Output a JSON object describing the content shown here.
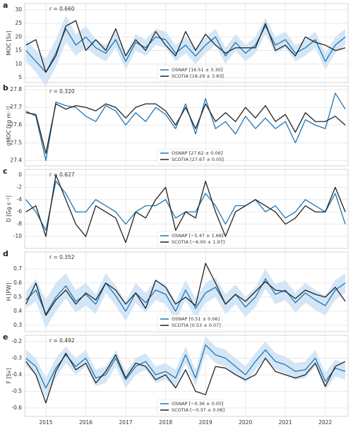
{
  "chart_data": [
    {
      "type": "line",
      "panel_label": "a",
      "ylabel": "MOC [Sv]",
      "annotation": "r = 0.660",
      "legend": "lower center",
      "x": [
        2014.5,
        2014.75,
        2015,
        2015.25,
        2015.5,
        2015.75,
        2016,
        2016.25,
        2016.5,
        2016.75,
        2017,
        2017.25,
        2017.5,
        2017.75,
        2018,
        2018.25,
        2018.5,
        2018.75,
        2019,
        2019.25,
        2019.5,
        2019.75,
        2020,
        2020.25,
        2020.5,
        2020.75,
        2021,
        2021.25,
        2021.5,
        2021.75,
        2022,
        2022.25,
        2022.5
      ],
      "xlim": [
        2014.47,
        2022.57
      ],
      "xticks": [
        2015,
        2016,
        2017,
        2018,
        2019,
        2020,
        2021,
        2022
      ],
      "ylim": [
        3.2,
        32.3
      ],
      "yticks": [
        5,
        10,
        15,
        20,
        25,
        30
      ],
      "grid": true,
      "series": [
        {
          "name": "OSNAP [16.51 ± 3.30]",
          "color": "#1f77b4",
          "band_color": "#d4e6f5",
          "values": [
            15,
            11,
            7,
            14,
            23,
            17,
            20,
            16,
            14,
            19,
            11,
            18,
            16,
            20,
            19,
            14,
            17,
            13,
            17,
            20,
            13,
            18,
            14,
            17,
            24,
            17,
            19,
            14,
            16,
            19,
            11,
            17,
            20
          ],
          "errors": [
            4,
            4,
            5,
            5,
            5,
            4,
            4,
            3,
            3,
            3,
            3,
            3,
            3,
            3,
            3,
            3,
            3,
            3,
            3,
            3,
            3,
            3,
            3,
            3,
            3,
            3,
            3,
            3,
            3,
            3,
            3,
            3,
            3
          ]
        },
        {
          "name": "SCOTIA [18.29 ± 3.83]",
          "color": "#222222",
          "values": [
            17,
            19,
            7,
            13,
            24,
            26,
            15,
            19,
            15,
            23,
            13,
            19,
            15,
            22,
            17,
            13,
            22,
            15,
            21,
            17,
            14,
            16,
            16,
            16,
            25,
            15,
            17,
            13,
            20,
            18,
            17,
            15,
            16
          ]
        }
      ]
    },
    {
      "type": "line",
      "panel_label": "b",
      "ylabel": "σMOC [kg m⁻³]",
      "annotation": "r = 0.320",
      "legend": "lower center",
      "x": [
        2014.5,
        2014.75,
        2015,
        2015.25,
        2015.5,
        2015.75,
        2016,
        2016.25,
        2016.5,
        2016.75,
        2017,
        2017.25,
        2017.5,
        2017.75,
        2018,
        2018.25,
        2018.5,
        2018.75,
        2019,
        2019.25,
        2019.5,
        2019.75,
        2020,
        2020.25,
        2020.5,
        2020.75,
        2021,
        2021.25,
        2021.5,
        2021.75,
        2022,
        2022.25,
        2022.5
      ],
      "xlim": [
        2014.47,
        2022.57
      ],
      "xticks": [
        2015,
        2016,
        2017,
        2018,
        2019,
        2020,
        2021,
        2022
      ],
      "ylim": [
        27.37,
        27.82
      ],
      "yticks": [
        27.4,
        27.5,
        27.6,
        27.7,
        27.8
      ],
      "grid": true,
      "series": [
        {
          "name": "OSNAP [27.62 ± 0.06]",
          "color": "#1f77b4",
          "values": [
            27.68,
            27.65,
            27.4,
            27.73,
            27.71,
            27.7,
            27.65,
            27.62,
            27.71,
            27.68,
            27.6,
            27.67,
            27.62,
            27.7,
            27.66,
            27.58,
            27.72,
            27.55,
            27.75,
            27.58,
            27.62,
            27.55,
            27.65,
            27.58,
            27.64,
            27.58,
            27.62,
            27.5,
            27.63,
            27.6,
            27.58,
            27.78,
            27.69
          ]
        },
        {
          "name": "SCOTIA [27.67 ± 0.05]",
          "color": "#222222",
          "values": [
            27.67,
            27.66,
            27.44,
            27.72,
            27.69,
            27.71,
            27.7,
            27.68,
            27.72,
            27.7,
            27.64,
            27.7,
            27.72,
            27.72,
            27.68,
            27.6,
            27.7,
            27.58,
            27.72,
            27.62,
            27.67,
            27.62,
            27.7,
            27.64,
            27.71,
            27.62,
            27.66,
            27.56,
            27.67,
            27.62,
            27.62,
            27.65,
            27.6
          ]
        }
      ]
    },
    {
      "type": "line",
      "panel_label": "c",
      "ylabel": "D [Gg s⁻¹]",
      "annotation": "r = 0.627",
      "legend": "lower center",
      "x": [
        2014.5,
        2014.75,
        2015,
        2015.25,
        2015.5,
        2015.75,
        2016,
        2016.25,
        2016.5,
        2016.75,
        2017,
        2017.25,
        2017.5,
        2017.75,
        2018,
        2018.25,
        2018.5,
        2018.75,
        2019,
        2019.25,
        2019.5,
        2019.75,
        2020,
        2020.25,
        2020.5,
        2020.75,
        2021,
        2021.25,
        2021.5,
        2021.75,
        2022,
        2022.25,
        2022.5
      ],
      "xlim": [
        2014.47,
        2022.57
      ],
      "xticks": [
        2015,
        2016,
        2017,
        2018,
        2019,
        2020,
        2021,
        2022
      ],
      "ylim": [
        -11.95,
        0.92
      ],
      "yticks": [
        -10,
        -8,
        -6,
        -4,
        -2,
        0
      ],
      "grid": true,
      "series": [
        {
          "name": "OSNAP [−5.47 ± 1.68]",
          "color": "#1f77b4",
          "values": [
            -4,
            -6,
            -9,
            -1,
            -3,
            -6,
            -6,
            -4,
            -5,
            -6,
            -8,
            -6,
            -5,
            -5,
            -4,
            -7,
            -6,
            -6,
            -3,
            -5,
            -8,
            -5,
            -5,
            -4,
            -6,
            -5,
            -7,
            -6,
            -4,
            -5,
            -6,
            -3,
            -8
          ]
        },
        {
          "name": "SCOTIA [−6.00 ± 1.97]",
          "color": "#222222",
          "values": [
            -6,
            -5,
            -10,
            0,
            -4,
            -8,
            -10,
            -5,
            -6,
            -7,
            -11,
            -6,
            -7,
            -4,
            -2,
            -9,
            -6,
            -7,
            -1,
            -6,
            -10,
            -6,
            -5,
            -4,
            -5,
            -6,
            -8,
            -7,
            -5,
            -6,
            -6,
            -2,
            -6
          ]
        }
      ]
    },
    {
      "type": "line",
      "panel_label": "d",
      "ylabel": "H [PW]",
      "annotation": "r = 0.352",
      "legend": "lower center",
      "x": [
        2014.5,
        2014.75,
        2015,
        2015.25,
        2015.5,
        2015.75,
        2016,
        2016.25,
        2016.5,
        2016.75,
        2017,
        2017.25,
        2017.5,
        2017.75,
        2018,
        2018.25,
        2018.5,
        2018.75,
        2019,
        2019.25,
        2019.5,
        2019.75,
        2020,
        2020.25,
        2020.5,
        2020.75,
        2021,
        2021.25,
        2021.5,
        2021.75,
        2022,
        2022.25,
        2022.5
      ],
      "xlim": [
        2014.47,
        2022.57
      ],
      "xticks": [
        2015,
        2016,
        2017,
        2018,
        2019,
        2020,
        2021,
        2022
      ],
      "ylim": [
        0.255,
        0.82
      ],
      "yticks": [
        0.3,
        0.4,
        0.5,
        0.6,
        0.7
      ],
      "grid": true,
      "series": [
        {
          "name": "OSNAP [0.51 ± 0.06]",
          "color": "#1f77b4",
          "band_color": "#d4e6f5",
          "values": [
            0.48,
            0.55,
            0.38,
            0.5,
            0.58,
            0.47,
            0.52,
            0.45,
            0.6,
            0.51,
            0.4,
            0.53,
            0.46,
            0.55,
            0.52,
            0.4,
            0.55,
            0.42,
            0.53,
            0.57,
            0.45,
            0.52,
            0.43,
            0.5,
            0.63,
            0.52,
            0.55,
            0.46,
            0.53,
            0.48,
            0.44,
            0.55,
            0.6
          ],
          "errors": [
            0.06,
            0.08,
            0.1,
            0.1,
            0.09,
            0.08,
            0.08,
            0.07,
            0.07,
            0.07,
            0.07,
            0.07,
            0.07,
            0.07,
            0.07,
            0.07,
            0.07,
            0.07,
            0.07,
            0.07,
            0.07,
            0.07,
            0.07,
            0.07,
            0.07,
            0.07,
            0.07,
            0.07,
            0.07,
            0.07,
            0.07,
            0.07,
            0.07
          ]
        },
        {
          "name": "SCOTIA [0.53 ± 0.07]",
          "color": "#222222",
          "values": [
            0.45,
            0.6,
            0.37,
            0.48,
            0.55,
            0.45,
            0.53,
            0.48,
            0.6,
            0.55,
            0.45,
            0.53,
            0.42,
            0.62,
            0.57,
            0.45,
            0.5,
            0.44,
            0.74,
            0.6,
            0.45,
            0.52,
            0.47,
            0.54,
            0.61,
            0.55,
            0.54,
            0.49,
            0.55,
            0.52,
            0.5,
            0.57,
            0.47
          ]
        }
      ]
    },
    {
      "type": "line",
      "panel_label": "e",
      "ylabel": "F [Sv]",
      "annotation": "r = 0.492",
      "legend": "lower center",
      "x": [
        2014.5,
        2014.75,
        2015,
        2015.25,
        2015.5,
        2015.75,
        2016,
        2016.25,
        2016.5,
        2016.75,
        2017,
        2017.25,
        2017.5,
        2017.75,
        2018,
        2018.25,
        2018.5,
        2018.75,
        2019,
        2019.25,
        2019.5,
        2019.75,
        2020,
        2020.25,
        2020.5,
        2020.75,
        2021,
        2021.25,
        2021.5,
        2021.75,
        2022,
        2022.25,
        2022.5
      ],
      "xlim": [
        2014.47,
        2022.57
      ],
      "xticks": [
        2015,
        2016,
        2017,
        2018,
        2019,
        2020,
        2021,
        2022
      ],
      "xtick_labels": true,
      "ylim": [
        -0.651,
        -0.162
      ],
      "yticks": [
        -0.6,
        -0.5,
        -0.4,
        -0.3,
        -0.2
      ],
      "grid": true,
      "series": [
        {
          "name": "OSNAP [−0.36 ± 0.05]",
          "color": "#1f77b4",
          "band_color": "#d4e6f5",
          "values": [
            -0.3,
            -0.35,
            -0.48,
            -0.36,
            -0.28,
            -0.35,
            -0.3,
            -0.42,
            -0.4,
            -0.3,
            -0.43,
            -0.35,
            -0.32,
            -0.4,
            -0.38,
            -0.42,
            -0.28,
            -0.42,
            -0.22,
            -0.28,
            -0.3,
            -0.35,
            -0.4,
            -0.32,
            -0.25,
            -0.32,
            -0.34,
            -0.38,
            -0.37,
            -0.3,
            -0.44,
            -0.36,
            -0.38
          ],
          "errors": [
            0.05,
            0.05,
            0.06,
            0.06,
            0.05,
            0.05,
            0.05,
            0.05,
            0.05,
            0.05,
            0.05,
            0.05,
            0.05,
            0.05,
            0.05,
            0.05,
            0.05,
            0.05,
            0.05,
            0.05,
            0.05,
            0.05,
            0.05,
            0.05,
            0.05,
            0.05,
            0.05,
            0.05,
            0.05,
            0.05,
            0.05,
            0.05,
            0.05
          ]
        },
        {
          "name": "SCOTIA [−0.37 ± 0.06]",
          "color": "#222222",
          "values": [
            -0.32,
            -0.4,
            -0.57,
            -0.38,
            -0.27,
            -0.37,
            -0.33,
            -0.45,
            -0.38,
            -0.28,
            -0.42,
            -0.33,
            -0.35,
            -0.43,
            -0.4,
            -0.48,
            -0.37,
            -0.5,
            -0.52,
            -0.35,
            -0.36,
            -0.4,
            -0.43,
            -0.4,
            -0.3,
            -0.38,
            -0.4,
            -0.42,
            -0.4,
            -0.33,
            -0.47,
            -0.35,
            -0.32
          ]
        }
      ]
    }
  ]
}
